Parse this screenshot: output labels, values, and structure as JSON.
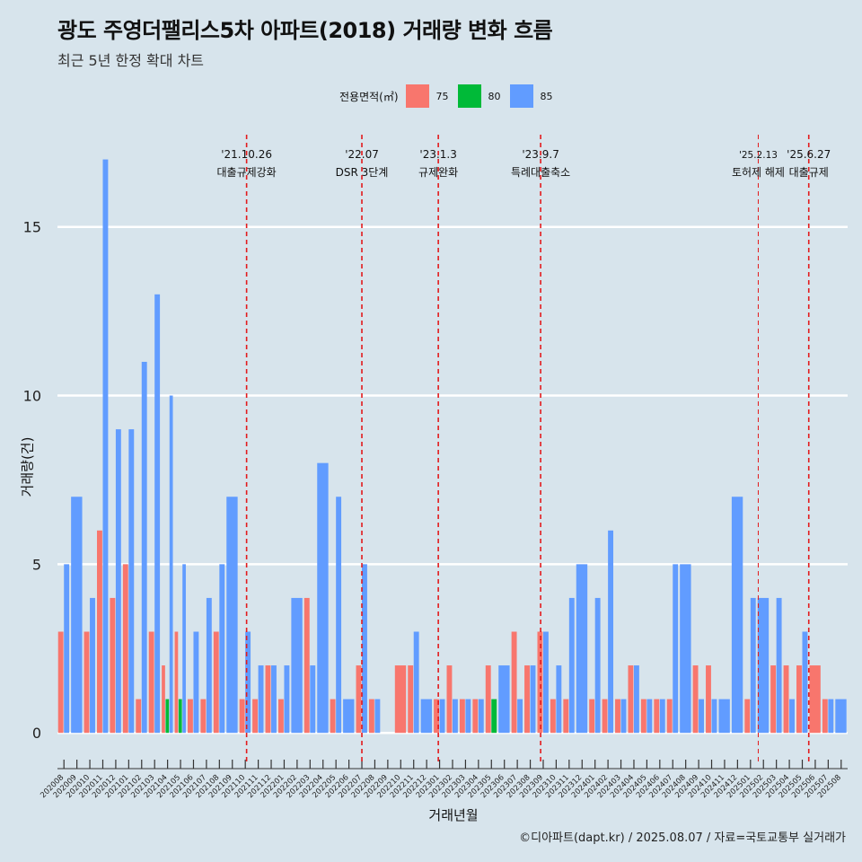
{
  "title": "광도 주영더팰리스5차 아파트(2018) 거래량 변화 흐름",
  "subtitle": "최근 5년 한정 확대 차트",
  "legend": {
    "title": "전용면적(㎡)",
    "items": [
      {
        "label": "75",
        "color": "#f8766d"
      },
      {
        "label": "80",
        "color": "#00ba38"
      },
      {
        "label": "85",
        "color": "#619cff"
      }
    ]
  },
  "caption": "©디아파트(dapt.kr) / 2025.08.07 / 자료=국토교통부 실거래가",
  "chart_data": {
    "type": "bar",
    "xlabel": "거래년월",
    "ylabel": "거래량(건)",
    "ylim": [
      -0.9,
      18
    ],
    "yticks": [
      0,
      5,
      10,
      15
    ],
    "grid": true,
    "legend_position": "top",
    "categories": [
      "202008",
      "202009",
      "202010",
      "202011",
      "202012",
      "202101",
      "202102",
      "202103",
      "202104",
      "202105",
      "202106",
      "202107",
      "202108",
      "202109",
      "202110",
      "202111",
      "202112",
      "202201",
      "202202",
      "202203",
      "202204",
      "202205",
      "202206",
      "202207",
      "202208",
      "202209",
      "202210",
      "202211",
      "202212",
      "202301",
      "202302",
      "202303",
      "202304",
      "202305",
      "202306",
      "202307",
      "202308",
      "202309",
      "202310",
      "202311",
      "202312",
      "202401",
      "202402",
      "202403",
      "202404",
      "202405",
      "202406",
      "202407",
      "202408",
      "202409",
      "202410",
      "202411",
      "202412",
      "202501",
      "202502",
      "202503",
      "202504",
      "202505",
      "202506",
      "202507",
      "202508"
    ],
    "series": [
      {
        "name": "75",
        "color": "#f8766d",
        "values": [
          3,
          0,
          3,
          6,
          4,
          5,
          1,
          3,
          2,
          3,
          1,
          1,
          3,
          0,
          1,
          1,
          2,
          1,
          0,
          4,
          0,
          1,
          0,
          2,
          1,
          0,
          2,
          2,
          0,
          1,
          2,
          1,
          1,
          2,
          0,
          3,
          2,
          3,
          1,
          1,
          0,
          1,
          1,
          1,
          2,
          1,
          1,
          1,
          0,
          2,
          2,
          0,
          0,
          1,
          0,
          2,
          2,
          2,
          2,
          1,
          0
        ]
      },
      {
        "name": "80",
        "color": "#00ba38",
        "values": [
          0,
          0,
          0,
          0,
          0,
          0,
          0,
          0,
          1,
          1,
          0,
          0,
          0,
          0,
          0,
          0,
          0,
          0,
          0,
          0,
          0,
          0,
          0,
          0,
          0,
          0,
          0,
          0,
          0,
          0,
          0,
          0,
          0,
          1,
          0,
          0,
          0,
          0,
          0,
          0,
          0,
          0,
          0,
          0,
          0,
          0,
          0,
          0,
          0,
          0,
          0,
          0,
          0,
          0,
          0,
          0,
          0,
          0,
          0,
          0,
          0
        ]
      },
      {
        "name": "85",
        "color": "#619cff",
        "values": [
          5,
          7,
          4,
          17,
          9,
          9,
          11,
          13,
          10,
          5,
          3,
          4,
          5,
          7,
          3,
          2,
          2,
          2,
          4,
          2,
          8,
          7,
          1,
          5,
          1,
          0,
          0,
          3,
          1,
          1,
          1,
          1,
          1,
          0,
          2,
          1,
          2,
          3,
          2,
          4,
          5,
          4,
          6,
          1,
          2,
          1,
          1,
          5,
          5,
          1,
          1,
          1,
          7,
          4,
          4,
          4,
          1,
          3,
          0,
          1,
          1
        ]
      }
    ],
    "annotations": [
      {
        "date": "'21.10.26",
        "text": "대출규제강화",
        "position": 14.1,
        "style": "bold-dash"
      },
      {
        "date": "'22.07",
        "text": "DSR 3단계",
        "position": 23.0,
        "style": "bold-dash"
      },
      {
        "date": "'23.1.3",
        "text": "규제완화",
        "position": 28.9,
        "style": "bold-dash"
      },
      {
        "date": "'23.9.7",
        "text": "특례대출축소",
        "position": 36.8,
        "style": "bold-dash"
      },
      {
        "date": "'25.2.13",
        "text": "토허제 해제",
        "position": 53.6,
        "style": "thin-dash"
      },
      {
        "date": "'25.6.27",
        "text": "대출규제",
        "position": 57.5,
        "style": "bold-dash"
      }
    ]
  }
}
